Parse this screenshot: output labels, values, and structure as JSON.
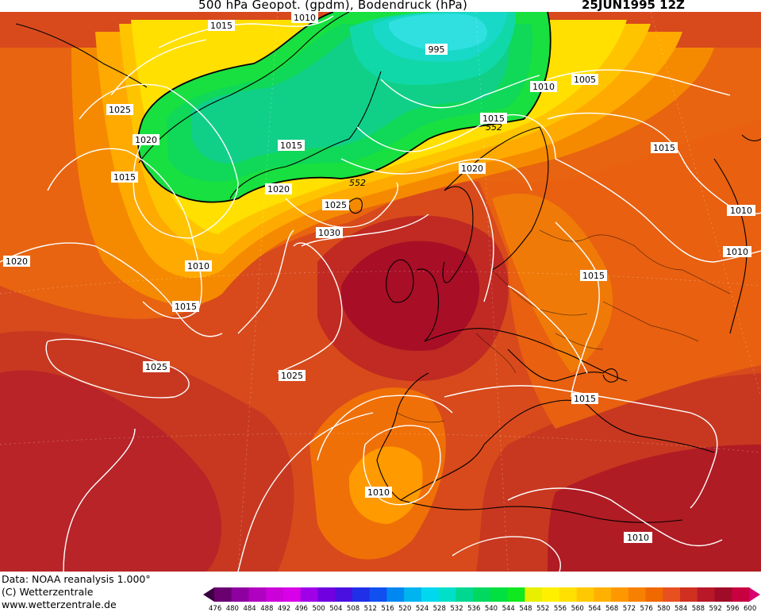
{
  "header": {
    "title": "500 hPa Geopot. (gpdm), Bodendruck (hPa)",
    "datetime": "25JUN1995 12Z"
  },
  "footer": {
    "data_source": "Data: NOAA reanalysis 1.000°",
    "copyright": "(C) Wetterzentrale",
    "website": "www.wetterzentrale.de"
  },
  "legend": {
    "ticks": [
      "476",
      "480",
      "484",
      "488",
      "492",
      "496",
      "500",
      "504",
      "508",
      "512",
      "516",
      "520",
      "524",
      "528",
      "532",
      "536",
      "540",
      "544",
      "548",
      "552",
      "556",
      "560",
      "564",
      "568",
      "572",
      "576",
      "580",
      "584",
      "588",
      "592",
      "596",
      "600"
    ],
    "colors": [
      "#3a0040",
      "#6a0070",
      "#8e00a0",
      "#b000c0",
      "#cc00d8",
      "#d800e8",
      "#a000e8",
      "#7000e0",
      "#4a10e0",
      "#2030e8",
      "#1050f0",
      "#0088f0",
      "#00b4f0",
      "#00d8f0",
      "#00e0c8",
      "#00d890",
      "#00d860",
      "#00e040",
      "#10e820",
      "#e8f000",
      "#fff000",
      "#ffe000",
      "#ffc800",
      "#ffb000",
      "#ff9800",
      "#f88000",
      "#f06800",
      "#e85020",
      "#d03020",
      "#b81828",
      "#a00c28",
      "#c80040",
      "#d80070"
    ]
  },
  "isobars": [
    {
      "label": "1015",
      "key": "a"
    },
    {
      "label": "1010",
      "key": "b"
    },
    {
      "label": "995",
      "key": "c"
    },
    {
      "label": "1005",
      "key": "d"
    },
    {
      "label": "1010",
      "key": "e"
    },
    {
      "label": "1025",
      "key": "f"
    },
    {
      "label": "1020",
      "key": "g"
    },
    {
      "label": "1015",
      "key": "h"
    },
    {
      "label": "1015",
      "key": "i"
    },
    {
      "label": "552",
      "key": "j"
    },
    {
      "label": "1015",
      "key": "k"
    },
    {
      "label": "1015",
      "key": "l"
    },
    {
      "label": "1020",
      "key": "m"
    },
    {
      "label": "552",
      "key": "n"
    },
    {
      "label": "1020",
      "key": "o"
    },
    {
      "label": "1025",
      "key": "p"
    },
    {
      "label": "1010",
      "key": "q"
    },
    {
      "label": "1030",
      "key": "r"
    },
    {
      "label": "1020",
      "key": "s"
    },
    {
      "label": "1010",
      "key": "t"
    },
    {
      "label": "1010",
      "key": "u"
    },
    {
      "label": "1015",
      "key": "v"
    },
    {
      "label": "1015",
      "key": "w"
    },
    {
      "label": "1025",
      "key": "x"
    },
    {
      "label": "1025",
      "key": "y"
    },
    {
      "label": "1015",
      "key": "z"
    },
    {
      "label": "1010",
      "key": "aa"
    },
    {
      "label": "1010",
      "key": "bb"
    }
  ]
}
